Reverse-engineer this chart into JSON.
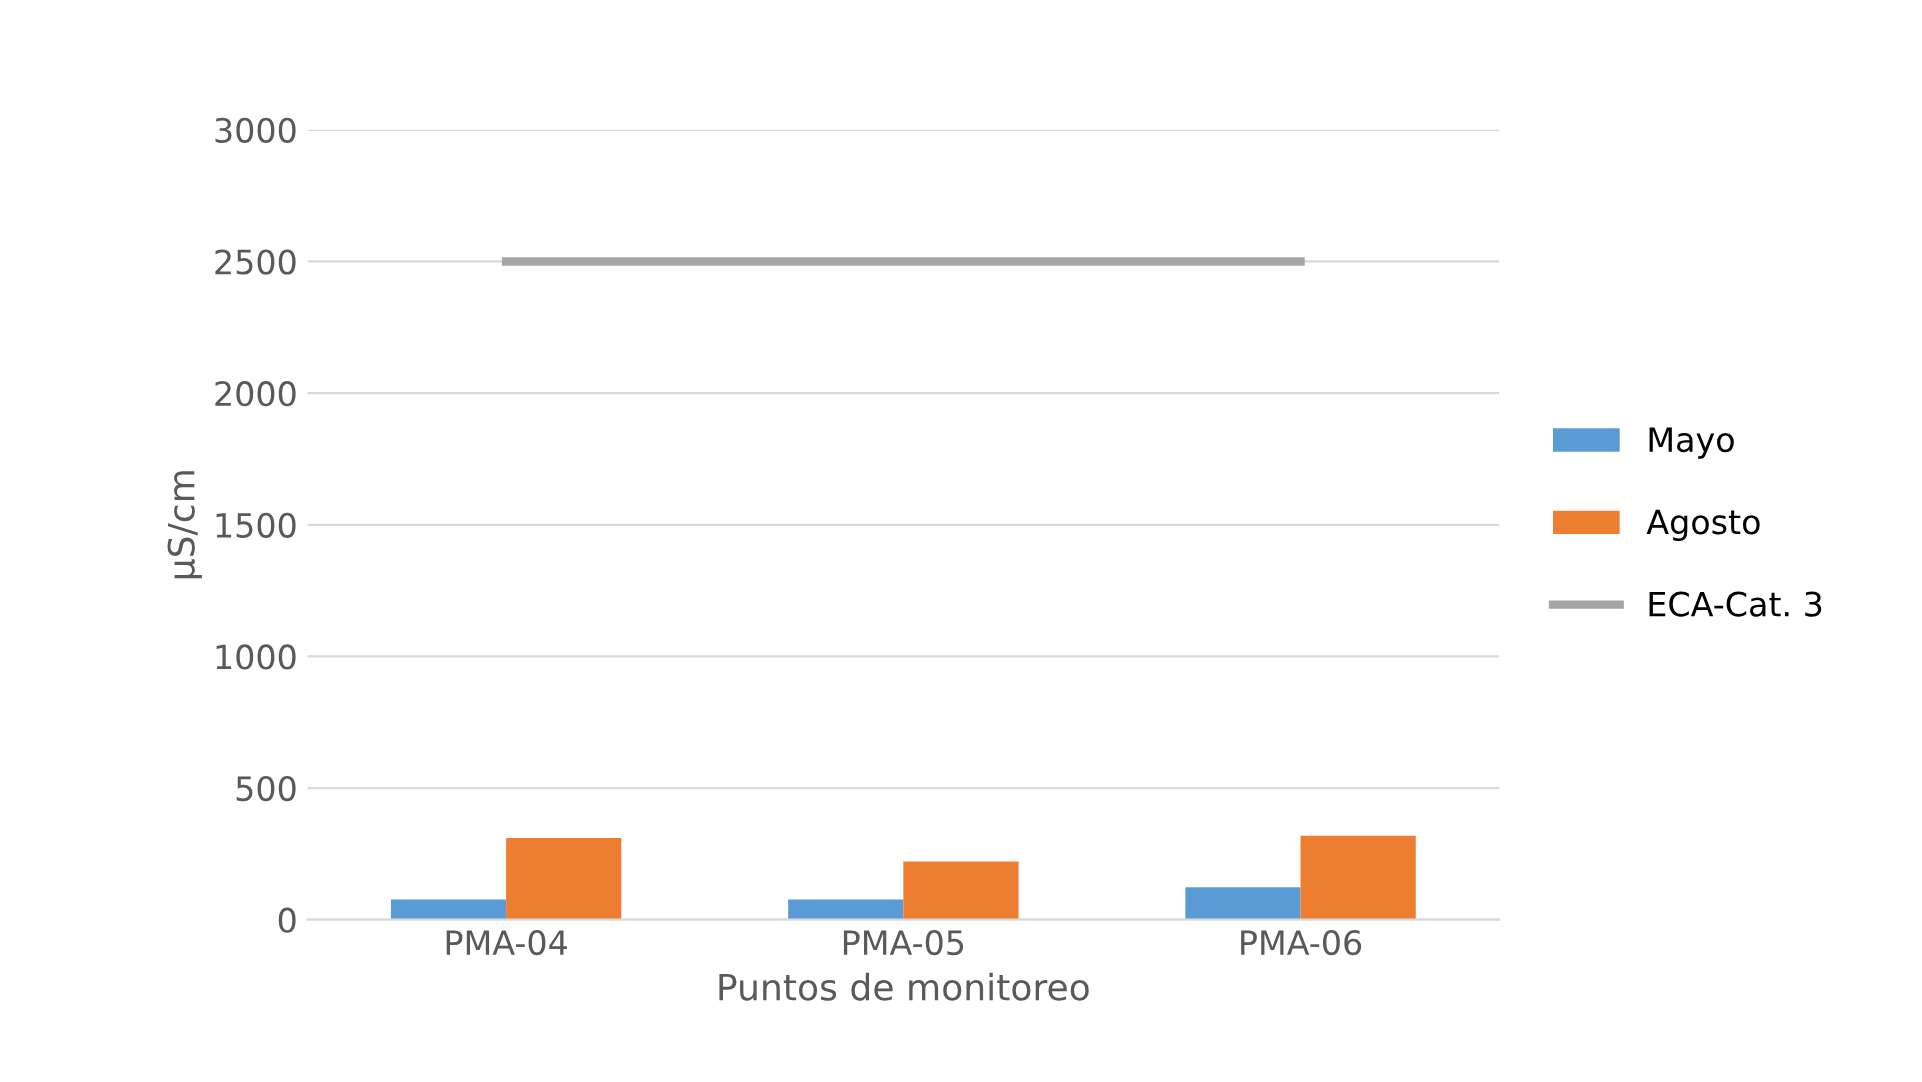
{
  "chart_data": {
    "type": "bar",
    "xlabel": "Puntos de monitoreo",
    "ylabel": "µS/cm",
    "categories": [
      "PMA-04",
      "PMA-05",
      "PMA-06"
    ],
    "series": [
      {
        "name": "Mayo",
        "color": "#5b9bd5",
        "values": [
          77,
          77,
          123
        ]
      },
      {
        "name": "Agosto",
        "color": "#ed7d31",
        "values": [
          310,
          221,
          319
        ]
      },
      {
        "name": "ECA-Cat. 3",
        "type": "line",
        "color": "#a5a5a5",
        "values": [
          2500,
          2500,
          2500
        ]
      }
    ],
    "ylim": [
      0,
      3000
    ],
    "yticks": [
      0,
      500,
      1000,
      1500,
      2000,
      2500,
      3000
    ],
    "grid": "y",
    "legend": "right"
  }
}
